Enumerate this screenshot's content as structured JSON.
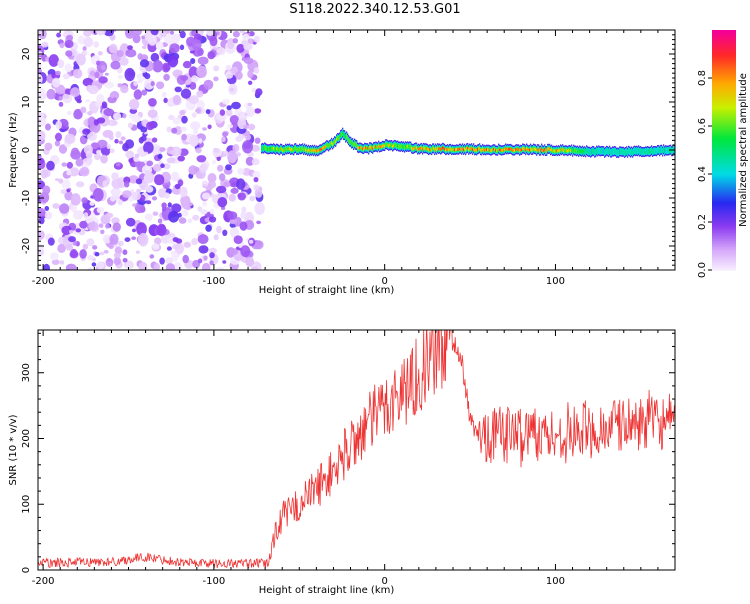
{
  "title": "S118.2022.340.12.53.G01",
  "colors": {
    "snr_line": "#ee3333",
    "axis": "#000000",
    "background": "#ffffff"
  },
  "chart_data": [
    {
      "type": "heatmap",
      "title": "S118.2022.340.12.53.G01",
      "xlabel": "Height of straight line (km)",
      "ylabel": "Frequency (Hz)",
      "xlim": [
        -203,
        170
      ],
      "ylim": [
        -25,
        25
      ],
      "x_ticks": [
        -200,
        -100,
        0,
        100
      ],
      "y_ticks": [
        -20,
        -10,
        0,
        10,
        20
      ],
      "colorbar": {
        "label": "Normalized spectral amplitude",
        "range": [
          0,
          1
        ],
        "ticks": [
          "0.0",
          "0.2",
          "0.4",
          "0.6",
          "0.8"
        ],
        "colormap": "rainbow"
      },
      "noise_region_x": [
        -203,
        -73
      ],
      "ridge": {
        "x": [
          -73,
          -60,
          -50,
          -40,
          -30,
          -25,
          -20,
          -15,
          -10,
          0,
          10,
          20,
          40,
          60,
          80,
          100,
          120,
          140,
          170
        ],
        "freq": [
          0.5,
          0,
          0.2,
          -0.2,
          1.5,
          3.5,
          1.5,
          0.5,
          0.3,
          1.0,
          0.8,
          0.2,
          0.2,
          0.1,
          0.1,
          0.0,
          -0.3,
          -0.4,
          0.0
        ],
        "peak_amplitude": [
          0.6,
          0.8,
          0.7,
          0.9,
          0.8,
          0.6,
          0.7,
          0.9,
          0.9,
          0.8,
          0.7,
          0.9,
          0.9,
          0.9,
          0.9,
          0.9,
          0.5,
          0.5,
          0.5
        ]
      }
    },
    {
      "type": "line",
      "xlabel": "Height of straight line (km)",
      "ylabel": "SNR (10 * v/v)",
      "xlim": [
        -203,
        170
      ],
      "ylim": [
        0,
        365
      ],
      "x_ticks": [
        -200,
        -100,
        0,
        100
      ],
      "y_ticks": [
        0,
        100,
        200,
        300
      ],
      "series": [
        {
          "x": [
            -203,
            -180,
            -160,
            -140,
            -120,
            -100,
            -80,
            -68,
            -64,
            -60,
            -50,
            -40,
            -30,
            -20,
            -10,
            0,
            10,
            20,
            30,
            40,
            45,
            50,
            55,
            60,
            70,
            80,
            90,
            100,
            110,
            120,
            130,
            140,
            150,
            160,
            170
          ],
          "values": [
            10,
            12,
            12,
            20,
            12,
            10,
            10,
            10,
            60,
            80,
            100,
            125,
            150,
            190,
            220,
            250,
            270,
            300,
            330,
            350,
            320,
            230,
            200,
            210,
            210,
            205,
            215,
            200,
            210,
            210,
            215,
            220,
            225,
            225,
            220
          ]
        }
      ]
    }
  ]
}
